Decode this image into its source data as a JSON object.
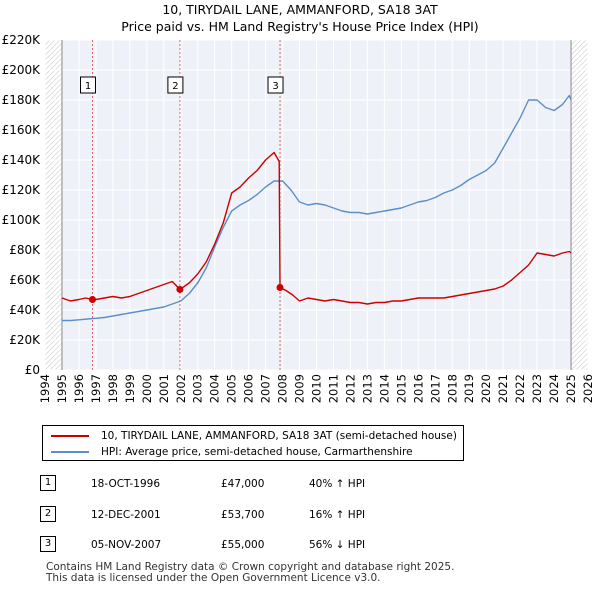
{
  "chart_data": {
    "type": "line",
    "title": "10, TIRYDAIL LANE, AMMANFORD, SA18 3AT",
    "subtitle": "Price paid vs. HM Land Registry's House Price Index (HPI)",
    "xlabel": "",
    "ylabel": "",
    "xlim": [
      1994,
      2026
    ],
    "ylim": [
      0,
      220000
    ],
    "x_ticks": [
      "1994",
      "1995",
      "1996",
      "1997",
      "1998",
      "1999",
      "2000",
      "2001",
      "2002",
      "2003",
      "2004",
      "2005",
      "2006",
      "2007",
      "2008",
      "2009",
      "2010",
      "2011",
      "2012",
      "2013",
      "2014",
      "2015",
      "2016",
      "2017",
      "2018",
      "2019",
      "2020",
      "2021",
      "2022",
      "2023",
      "2024",
      "2025",
      "2026"
    ],
    "y_ticks": [
      {
        "value": 0,
        "label": "£0"
      },
      {
        "value": 20000,
        "label": "£20K"
      },
      {
        "value": 40000,
        "label": "£40K"
      },
      {
        "value": 60000,
        "label": "£60K"
      },
      {
        "value": 80000,
        "label": "£80K"
      },
      {
        "value": 100000,
        "label": "£100K"
      },
      {
        "value": 120000,
        "label": "£120K"
      },
      {
        "value": 140000,
        "label": "£140K"
      },
      {
        "value": 160000,
        "label": "£160K"
      },
      {
        "value": 180000,
        "label": "£180K"
      },
      {
        "value": 200000,
        "label": "£200K"
      },
      {
        "value": 220000,
        "label": "£220K"
      }
    ],
    "grid": true,
    "data_range_x": [
      1995.0,
      2025.0
    ],
    "series": [
      {
        "name": "10, TIRYDAIL LANE, AMMANFORD, SA18 3AT (semi-detached house)",
        "color": "#cc0000",
        "x": [
          1995.0,
          1995.5,
          1996.0,
          1996.4,
          1996.8,
          1997.0,
          1997.5,
          1998.0,
          1998.5,
          1999.0,
          1999.5,
          2000.0,
          2000.5,
          2001.0,
          2001.5,
          2001.95,
          2002.5,
          2003.0,
          2003.5,
          2004.0,
          2004.5,
          2005.0,
          2005.5,
          2006.0,
          2006.5,
          2007.0,
          2007.5,
          2007.8,
          2007.85,
          2008.2,
          2008.6,
          2009.0,
          2009.5,
          2010.0,
          2010.5,
          2011.0,
          2011.5,
          2012.0,
          2012.5,
          2013.0,
          2013.5,
          2014.0,
          2014.5,
          2015.0,
          2015.5,
          2016.0,
          2016.5,
          2017.0,
          2017.5,
          2018.0,
          2018.5,
          2019.0,
          2019.5,
          2020.0,
          2020.5,
          2021.0,
          2021.5,
          2022.0,
          2022.5,
          2023.0,
          2023.5,
          2024.0,
          2024.5,
          2024.9,
          2025.0
        ],
        "y": [
          48000,
          46000,
          47000,
          48000,
          47000,
          47000,
          48000,
          49000,
          48000,
          49000,
          51000,
          53000,
          55000,
          57000,
          59000,
          53700,
          58000,
          64000,
          72000,
          84000,
          98000,
          118000,
          122000,
          128000,
          133000,
          140000,
          145000,
          139000,
          55000,
          53000,
          50000,
          46000,
          48000,
          47000,
          46000,
          47000,
          46000,
          45000,
          45000,
          44000,
          45000,
          45000,
          46000,
          46000,
          47000,
          48000,
          48000,
          48000,
          48000,
          49000,
          50000,
          51000,
          52000,
          53000,
          54000,
          56000,
          60000,
          65000,
          70000,
          78000,
          77000,
          76000,
          78000,
          79000,
          78000
        ]
      },
      {
        "name": "HPI: Average price, semi-detached house, Carmarthenshire",
        "color": "#5b8fc7",
        "x": [
          1995.0,
          1995.5,
          1996.0,
          1996.5,
          1997.0,
          1997.5,
          1998.0,
          1998.5,
          1999.0,
          1999.5,
          2000.0,
          2000.5,
          2001.0,
          2001.5,
          2002.0,
          2002.5,
          2003.0,
          2003.5,
          2004.0,
          2004.5,
          2005.0,
          2005.5,
          2006.0,
          2006.5,
          2007.0,
          2007.5,
          2008.0,
          2008.5,
          2009.0,
          2009.5,
          2010.0,
          2010.5,
          2011.0,
          2011.5,
          2012.0,
          2012.5,
          2013.0,
          2013.5,
          2014.0,
          2014.5,
          2015.0,
          2015.5,
          2016.0,
          2016.5,
          2017.0,
          2017.5,
          2018.0,
          2018.5,
          2019.0,
          2019.5,
          2020.0,
          2020.5,
          2021.0,
          2021.5,
          2022.0,
          2022.5,
          2023.0,
          2023.5,
          2024.0,
          2024.5,
          2024.9,
          2025.0
        ],
        "y": [
          33000,
          33000,
          33500,
          34000,
          34500,
          35000,
          36000,
          37000,
          38000,
          39000,
          40000,
          41000,
          42000,
          44000,
          46000,
          51000,
          58000,
          68000,
          82000,
          95000,
          106000,
          110000,
          113000,
          117000,
          122000,
          126000,
          126000,
          120000,
          112000,
          110000,
          111000,
          110000,
          108000,
          106000,
          105000,
          105000,
          104000,
          105000,
          106000,
          107000,
          108000,
          110000,
          112000,
          113000,
          115000,
          118000,
          120000,
          123000,
          127000,
          130000,
          133000,
          138000,
          148000,
          158000,
          168000,
          180000,
          180000,
          175000,
          173000,
          177000,
          183000,
          180000
        ]
      }
    ],
    "markers": [
      {
        "label": "1",
        "x": 1996.8,
        "y": 47000
      },
      {
        "label": "2",
        "x": 2001.95,
        "y": 53700
      },
      {
        "label": "3",
        "x": 2007.85,
        "y": 55000
      }
    ]
  },
  "legend": {
    "items": [
      {
        "label": "10, TIRYDAIL LANE, AMMANFORD, SA18 3AT (semi-detached house)",
        "color": "#cc0000"
      },
      {
        "label": "HPI: Average price, semi-detached house, Carmarthenshire",
        "color": "#5b8fc7"
      }
    ]
  },
  "table": {
    "rows": [
      {
        "num": "1",
        "date": "18-OCT-1996",
        "price": "£47,000",
        "hpi": "40% ↑ HPI"
      },
      {
        "num": "2",
        "date": "12-DEC-2001",
        "price": "£53,700",
        "hpi": "16% ↑ HPI"
      },
      {
        "num": "3",
        "date": "05-NOV-2007",
        "price": "£55,000",
        "hpi": "56% ↓ HPI"
      }
    ]
  },
  "footer": {
    "line1": "Contains HM Land Registry data © Crown copyright and database right 2025.",
    "line2": "This data is licensed under the Open Government Licence v3.0."
  }
}
